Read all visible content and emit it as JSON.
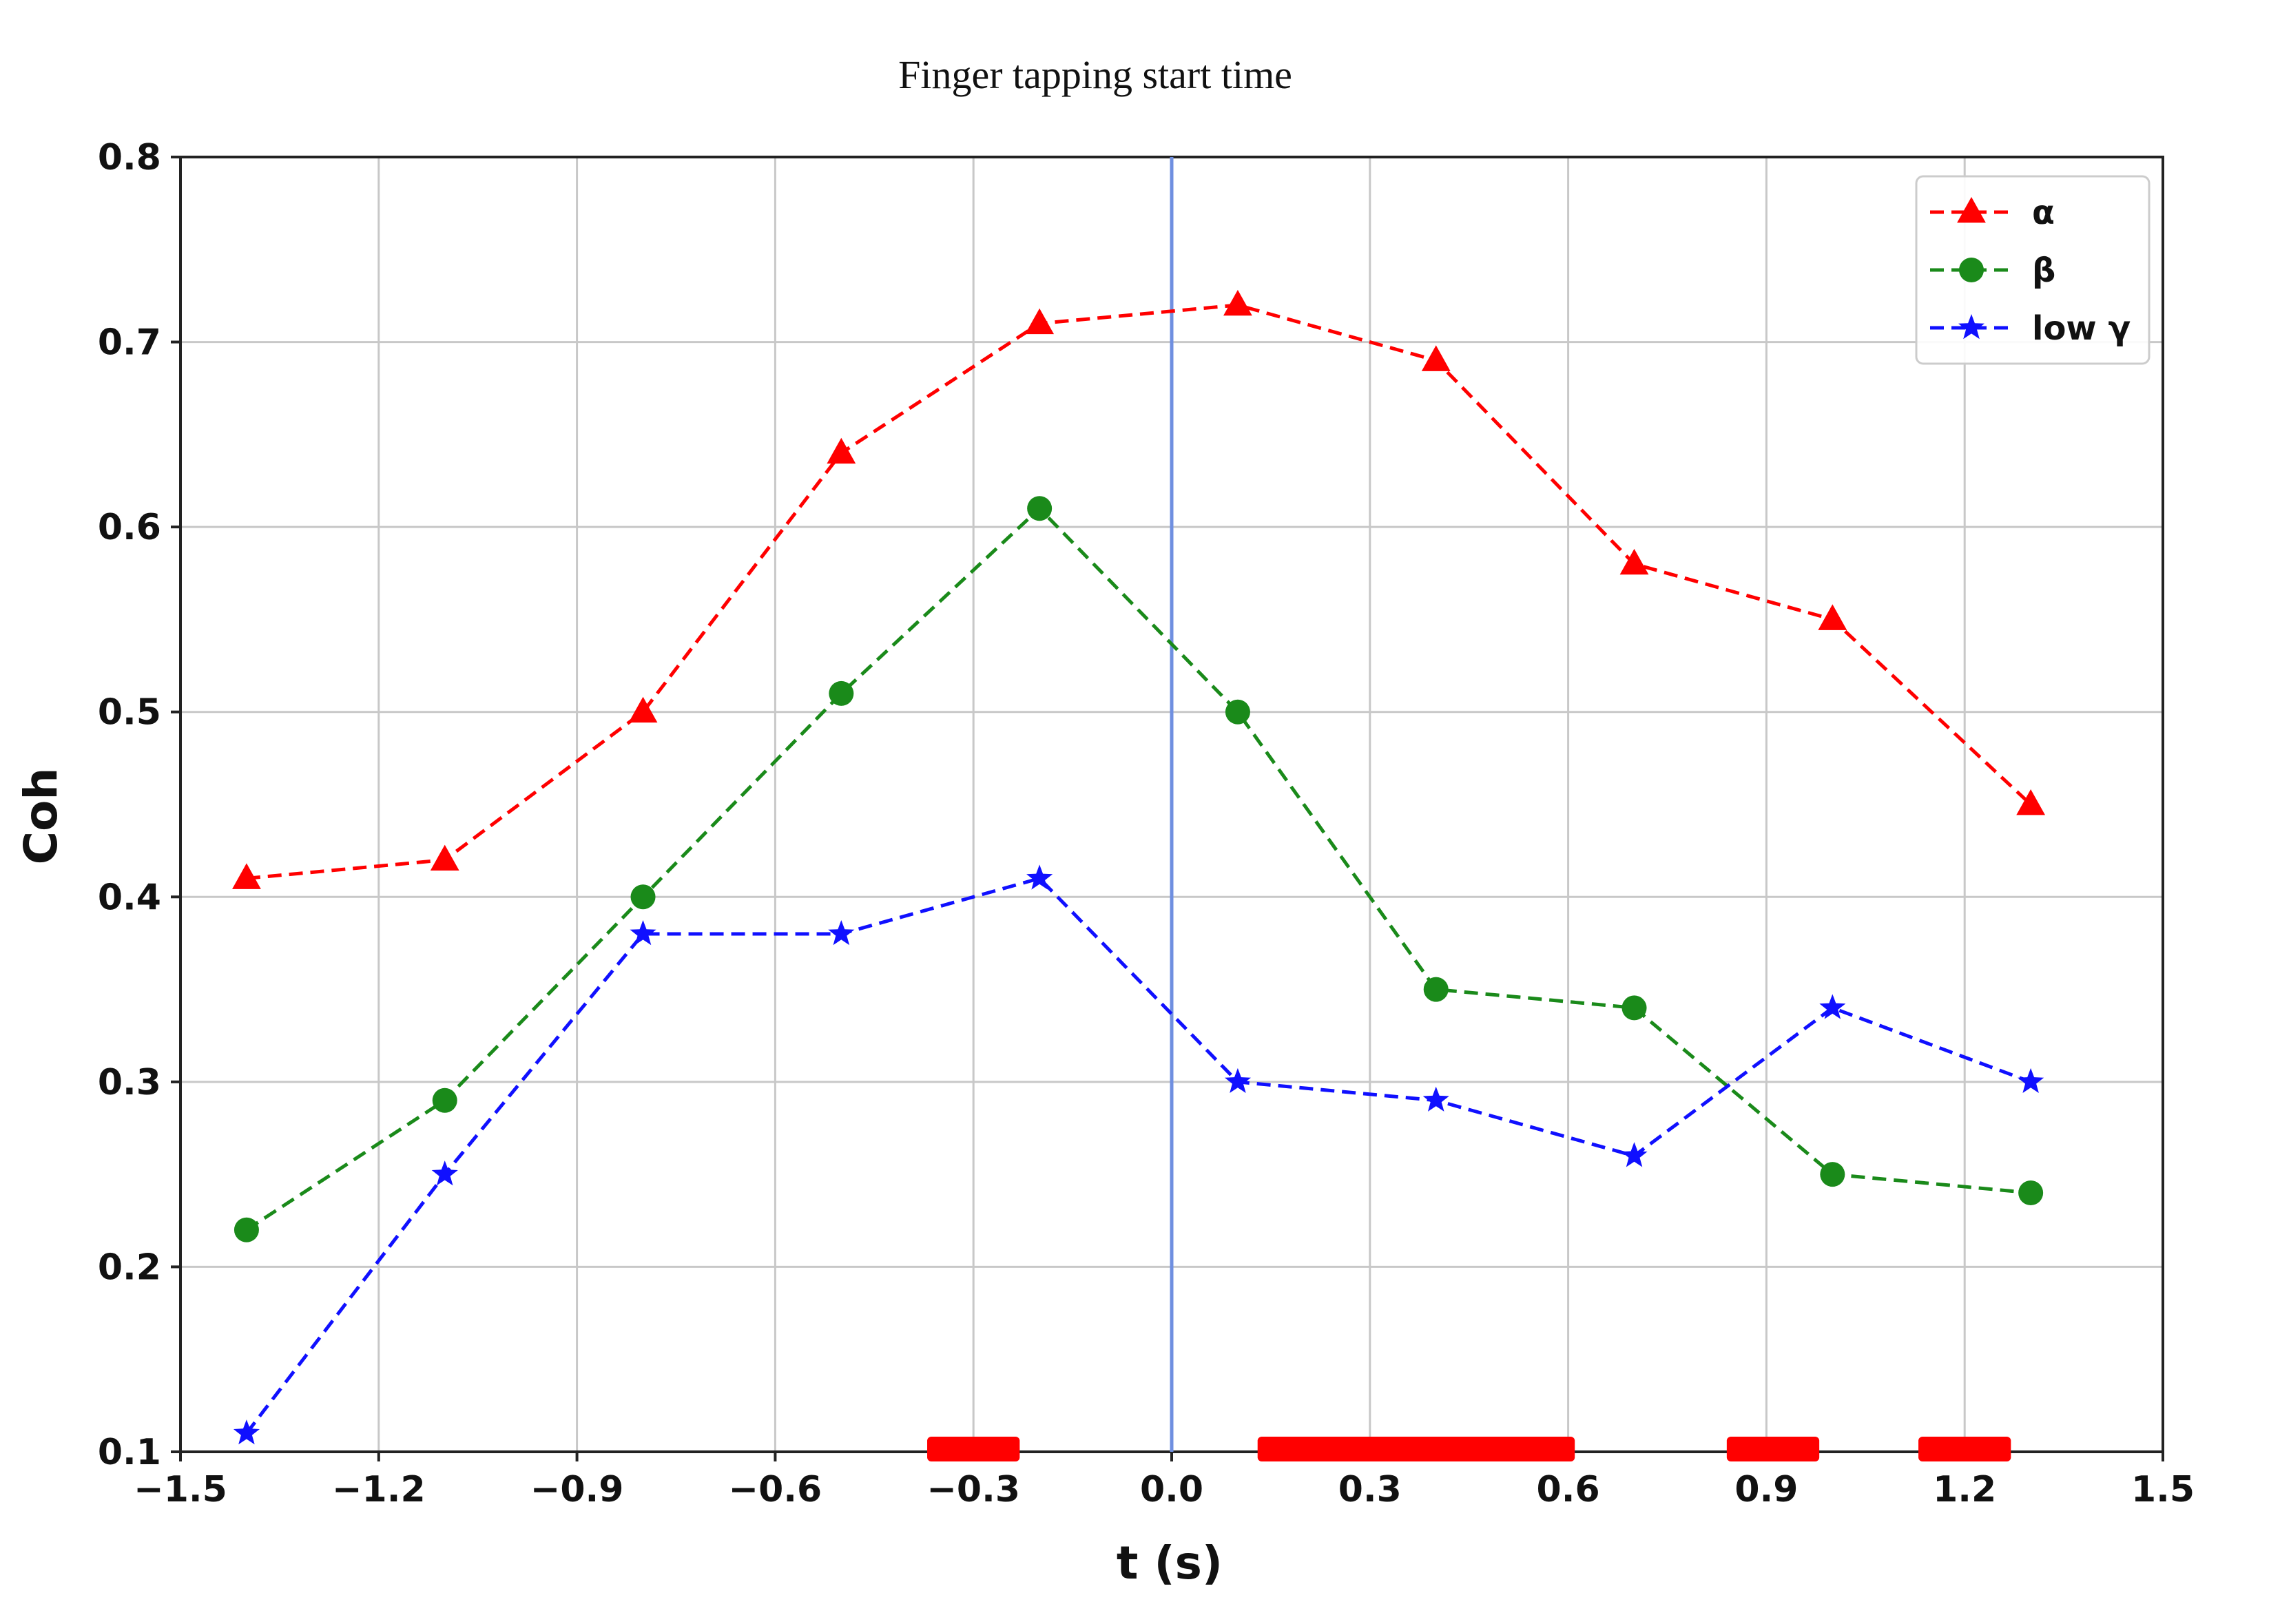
{
  "chart_data": {
    "type": "line",
    "title": "Finger tapping start time",
    "xlabel": "t (s)",
    "ylabel": "Coh",
    "xlim": [
      -1.5,
      1.5
    ],
    "ylim": [
      0.1,
      0.8
    ],
    "xticks": [
      "−1.5",
      "−1.2",
      "−0.9",
      "−0.6",
      "−0.3",
      "0.0",
      "0.3",
      "0.6",
      "0.9",
      "1.2",
      "1.5"
    ],
    "yticks": [
      "0.1",
      "0.2",
      "0.3",
      "0.4",
      "0.5",
      "0.6",
      "0.7",
      "0.8"
    ],
    "grid": true,
    "legend_position": "top-right",
    "vertical_line_x": 0.0,
    "vertical_line_color": "#6f8fe0",
    "x": [
      -1.4,
      -1.1,
      -0.8,
      -0.5,
      -0.2,
      0.1,
      0.4,
      0.7,
      1.0,
      1.3
    ],
    "series": [
      {
        "name": "α",
        "color": "#ff0000",
        "marker": "triangle",
        "values": [
          0.41,
          0.42,
          0.5,
          0.64,
          0.71,
          0.72,
          0.69,
          0.58,
          0.55,
          0.45
        ]
      },
      {
        "name": "β",
        "color": "#1a8a1a",
        "marker": "circle",
        "values": [
          0.22,
          0.29,
          0.4,
          0.51,
          0.61,
          0.5,
          0.35,
          0.34,
          0.25,
          0.24
        ]
      },
      {
        "name": "low γ",
        "color": "#1010ff",
        "marker": "star",
        "values": [
          0.11,
          0.25,
          0.38,
          0.38,
          0.41,
          0.3,
          0.29,
          0.26,
          0.34,
          0.3
        ]
      }
    ],
    "significance_bars": {
      "color": "#ff0000",
      "intervals": [
        [
          -0.37,
          -0.23
        ],
        [
          0.13,
          0.61
        ],
        [
          0.84,
          0.98
        ],
        [
          1.13,
          1.27
        ]
      ]
    }
  }
}
